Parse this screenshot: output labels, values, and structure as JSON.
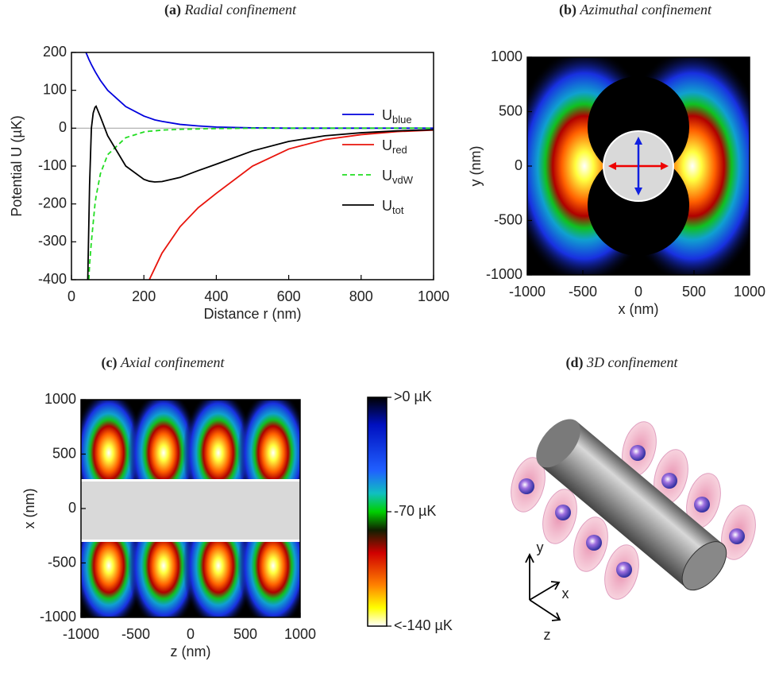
{
  "chart_data": [
    {
      "type": "line",
      "label": "(a)",
      "title": "Radial confinement",
      "xlabel": "Distance r (nm)",
      "ylabel": "Potential U (µK)",
      "x": [
        40,
        45,
        48,
        50,
        55,
        60,
        65,
        68,
        80,
        100,
        150,
        200,
        215,
        230,
        250,
        300,
        350,
        400,
        500,
        600,
        700,
        800,
        900,
        1000
      ],
      "series": [
        {
          "name": "U",
          "subscript": "blue",
          "color": "#0000dd",
          "dash": false,
          "values": [
            200,
            189,
            182,
            178,
            168,
            159,
            150,
            145,
            126,
            100,
            57,
            32,
            27,
            22,
            18,
            10,
            6,
            3,
            1,
            0,
            0,
            0,
            0,
            0
          ]
        },
        {
          "name": "U",
          "subscript": "red",
          "color": "#e8140c",
          "dash": false,
          "values": [
            null,
            null,
            null,
            null,
            null,
            null,
            null,
            null,
            null,
            null,
            null,
            null,
            -400,
            -370,
            -330,
            -260,
            -210,
            -172,
            -100,
            -55,
            -30,
            -17,
            -9,
            -5
          ]
        },
        {
          "name": "U",
          "subscript": "vdW",
          "color": "#22dd22",
          "dash": true,
          "values": [
            null,
            null,
            -400,
            -360,
            -300,
            -250,
            -200,
            -180,
            -120,
            -70,
            -25,
            -10,
            -8,
            -7,
            -5,
            -3,
            -2,
            -1,
            0,
            0,
            0,
            0,
            0,
            0
          ]
        },
        {
          "name": "U",
          "subscript": "tot",
          "color": "#000000",
          "dash": false,
          "values": [
            null,
            -400,
            -250,
            -150,
            0,
            40,
            55,
            58,
            30,
            -20,
            -100,
            -135,
            -140,
            -142,
            -141,
            -130,
            -112,
            -95,
            -60,
            -35,
            -20,
            -12,
            -7,
            -4
          ]
        }
      ],
      "xlim": [
        0,
        1000
      ],
      "ylim": [
        -400,
        200
      ],
      "xticks": [
        0,
        200,
        400,
        600,
        800,
        1000
      ],
      "yticks": [
        -400,
        -300,
        -200,
        -100,
        0,
        100,
        200
      ],
      "zero_line": true,
      "legend": "center right"
    },
    {
      "type": "heatmap",
      "label": "(b)",
      "title": "Azimuthal confinement",
      "xlabel": "x (nm)",
      "ylabel": "y (nm)",
      "xlim": [
        -1000,
        1000
      ],
      "ylim": [
        -1000,
        1000
      ],
      "xticks": [
        -1000,
        -500,
        0,
        500,
        1000
      ],
      "yticks": [
        -1000,
        -500,
        0,
        500,
        1000
      ]
    },
    {
      "type": "heatmap",
      "label": "(c)",
      "title": "Axial confinement",
      "xlabel": "z (nm)",
      "ylabel": "x (nm)",
      "xlim": [
        -1000,
        1000
      ],
      "ylim": [
        -1000,
        1000
      ],
      "xticks": [
        -1000,
        -500,
        0,
        500,
        1000
      ],
      "yticks": [
        -1000,
        -500,
        0,
        500,
        1000
      ],
      "colorbar": {
        "lim": [
          -140,
          0
        ],
        "ticks": [
          {
            "value": 0,
            "label": ">0 µK"
          },
          {
            "value": -70,
            "label": "-70 µK"
          },
          {
            "value": -140,
            "label": "<-140 µK"
          }
        ]
      }
    },
    {
      "type": "illustration",
      "label": "(d)",
      "title": "3D confinement",
      "axes": [
        "x",
        "y",
        "z"
      ]
    }
  ]
}
